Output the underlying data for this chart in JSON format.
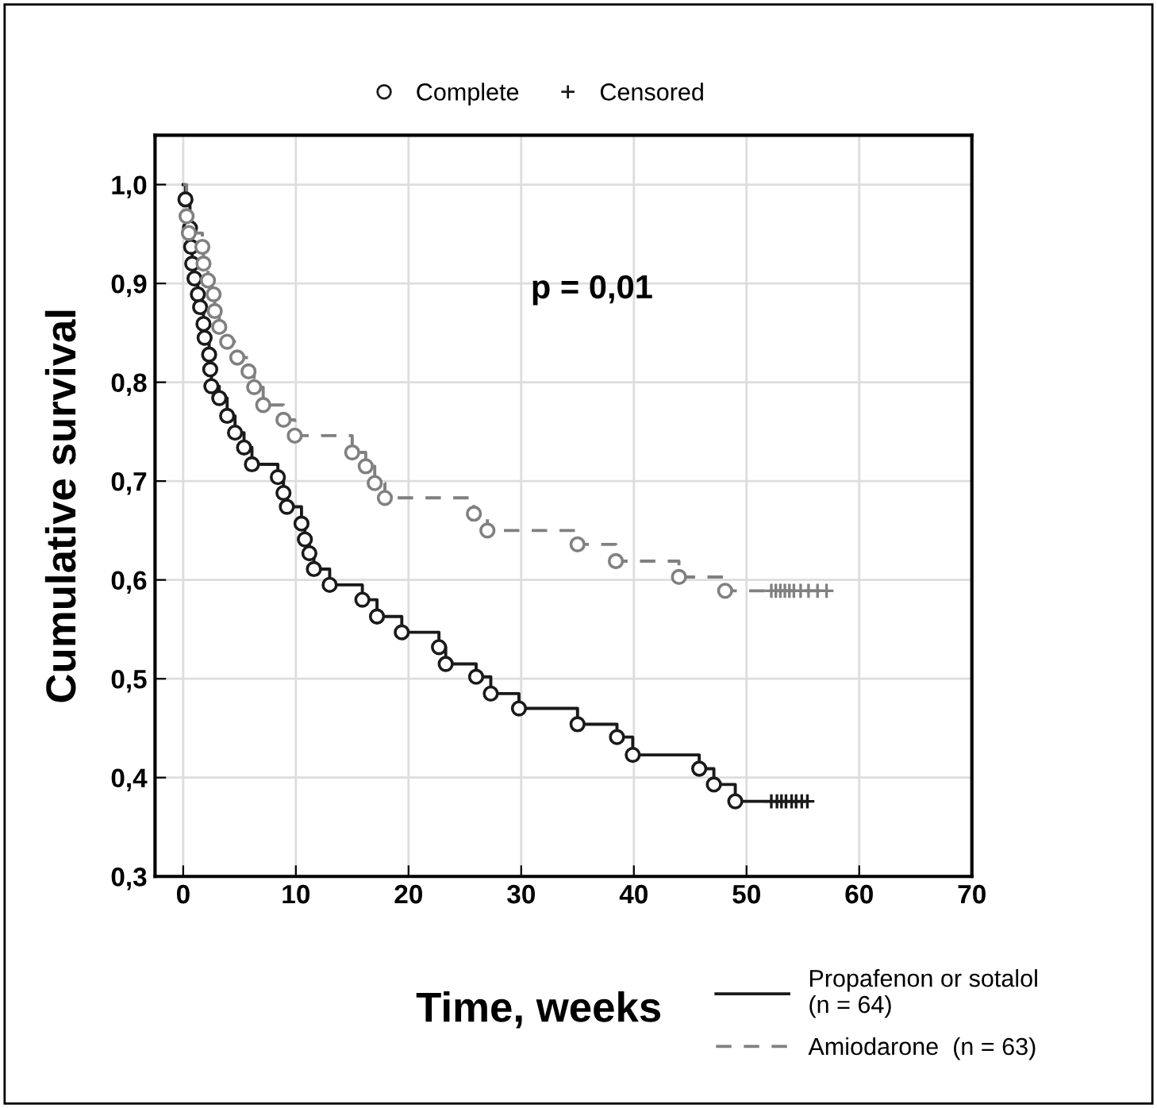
{
  "chart_data": {
    "type": "step",
    "xlabel": "Time, weeks",
    "ylabel": "Cumulative survival",
    "annotations": [
      "p = 0,01"
    ],
    "xlim": [
      -2.5,
      70
    ],
    "xticks": [
      0,
      10,
      20,
      30,
      40,
      50,
      60,
      70
    ],
    "ylim": [
      0.3,
      1.05
    ],
    "yticks": [
      {
        "value": 0.3,
        "label": "0,3"
      },
      {
        "value": 0.4,
        "label": "0,4"
      },
      {
        "value": 0.5,
        "label": "0,5"
      },
      {
        "value": 0.6,
        "label": "0,6"
      },
      {
        "value": 0.7,
        "label": "0,7"
      },
      {
        "value": 0.8,
        "label": "0,8"
      },
      {
        "value": 0.9,
        "label": "0,9"
      },
      {
        "value": 1.0,
        "label": "1,0"
      }
    ],
    "grid": true,
    "legend": "bottom right",
    "series": [
      {
        "name": "Propafenon or sotalol\n(n = 64)",
        "color": "#1a1a1a",
        "line_style": "solid",
        "x": [
          0,
          0.2,
          0.6,
          0.7,
          0.8,
          1.0,
          1.3,
          1.5,
          1.8,
          1.9,
          2.3,
          2.4,
          2.5,
          3.2,
          3.9,
          4.6,
          5.4,
          6.1,
          8.4,
          8.9,
          9.2,
          10.5,
          10.8,
          11.2,
          11.6,
          13.0,
          15.9,
          17.2,
          19.4,
          22.7,
          23.3,
          26.0,
          27.3,
          29.8,
          35.0,
          38.5,
          39.9,
          45.8,
          47.1,
          49.0,
          55.4
        ],
        "values": [
          1.0,
          0.985,
          0.956,
          0.937,
          0.92,
          0.905,
          0.889,
          0.876,
          0.859,
          0.845,
          0.828,
          0.813,
          0.796,
          0.784,
          0.766,
          0.749,
          0.734,
          0.717,
          0.704,
          0.688,
          0.674,
          0.657,
          0.641,
          0.627,
          0.611,
          0.595,
          0.58,
          0.563,
          0.547,
          0.532,
          0.515,
          0.502,
          0.485,
          0.47,
          0.454,
          0.441,
          0.423,
          0.409,
          0.393,
          0.376,
          0.376
        ]
      },
      {
        "name": "Amiodarone  (n = 63)",
        "color": "#808080",
        "line_style": "dashed",
        "x": [
          0,
          0.3,
          0.5,
          1.7,
          1.8,
          2.2,
          2.7,
          2.8,
          3.2,
          3.9,
          4.8,
          5.8,
          6.3,
          7.1,
          8.9,
          9.9,
          15.0,
          16.2,
          17.0,
          17.9,
          25.8,
          27.0,
          35.0,
          38.4,
          44.0,
          48.1,
          57.1
        ],
        "values": [
          1.0,
          0.968,
          0.951,
          0.937,
          0.92,
          0.903,
          0.889,
          0.872,
          0.856,
          0.841,
          0.825,
          0.811,
          0.795,
          0.777,
          0.762,
          0.746,
          0.729,
          0.715,
          0.698,
          0.683,
          0.667,
          0.65,
          0.636,
          0.619,
          0.603,
          0.589,
          0.589
        ]
      },
      {
        "type": "scatter",
        "name": "Complete",
        "marker": "circle",
        "color": "#1a1a1a",
        "x": [
          0.2,
          0.6,
          0.7,
          0.8,
          1.0,
          1.3,
          1.5,
          1.8,
          1.9,
          2.3,
          2.4,
          2.5,
          3.2,
          3.9,
          4.6,
          5.4,
          6.1,
          8.4,
          8.9,
          9.2,
          10.5,
          10.8,
          11.2,
          11.6,
          13.0,
          15.9,
          17.2,
          19.4,
          22.7,
          23.3,
          26.0,
          27.3,
          29.8,
          35.0,
          38.5,
          39.9,
          45.8,
          47.1,
          49.0,
          0.3,
          0.5,
          1.7,
          1.8,
          2.2,
          2.7,
          2.8,
          3.2,
          3.9,
          4.8,
          5.8,
          6.3,
          7.1,
          8.9,
          9.9,
          15.0,
          16.2,
          17.0,
          17.9,
          25.8,
          27.0,
          35.0,
          38.4,
          44.0,
          48.1
        ],
        "values": [
          0.985,
          0.956,
          0.937,
          0.92,
          0.905,
          0.889,
          0.876,
          0.859,
          0.845,
          0.828,
          0.813,
          0.796,
          0.784,
          0.766,
          0.749,
          0.734,
          0.717,
          0.704,
          0.688,
          0.674,
          0.657,
          0.641,
          0.627,
          0.611,
          0.595,
          0.58,
          0.563,
          0.547,
          0.532,
          0.515,
          0.502,
          0.485,
          0.47,
          0.454,
          0.441,
          0.423,
          0.409,
          0.393,
          0.376,
          0.968,
          0.951,
          0.937,
          0.92,
          0.903,
          0.889,
          0.872,
          0.856,
          0.841,
          0.825,
          0.811,
          0.795,
          0.777,
          0.762,
          0.746,
          0.729,
          0.715,
          0.698,
          0.683,
          0.667,
          0.65,
          0.636,
          0.619,
          0.603,
          0.589
        ],
        "colors": [
          "#1a1a1a",
          "#1a1a1a",
          "#1a1a1a",
          "#1a1a1a",
          "#1a1a1a",
          "#1a1a1a",
          "#1a1a1a",
          "#1a1a1a",
          "#1a1a1a",
          "#1a1a1a",
          "#1a1a1a",
          "#1a1a1a",
          "#1a1a1a",
          "#1a1a1a",
          "#1a1a1a",
          "#1a1a1a",
          "#1a1a1a",
          "#1a1a1a",
          "#1a1a1a",
          "#1a1a1a",
          "#1a1a1a",
          "#1a1a1a",
          "#1a1a1a",
          "#1a1a1a",
          "#1a1a1a",
          "#1a1a1a",
          "#1a1a1a",
          "#1a1a1a",
          "#1a1a1a",
          "#1a1a1a",
          "#1a1a1a",
          "#1a1a1a",
          "#1a1a1a",
          "#1a1a1a",
          "#1a1a1a",
          "#1a1a1a",
          "#1a1a1a",
          "#1a1a1a",
          "#1a1a1a",
          "#808080",
          "#808080",
          "#808080",
          "#808080",
          "#808080",
          "#808080",
          "#808080",
          "#808080",
          "#808080",
          "#808080",
          "#808080",
          "#808080",
          "#808080",
          "#808080",
          "#808080",
          "#808080",
          "#808080",
          "#808080",
          "#808080",
          "#808080",
          "#808080",
          "#808080",
          "#808080",
          "#808080",
          "#808080"
        ]
      },
      {
        "type": "scatter",
        "name": "Censored",
        "marker": "cross",
        "color": "#1a1a1a",
        "x": [
          52.2,
          52.7,
          53.1,
          53.5,
          54.0,
          54.4,
          54.9,
          55.4,
          52.2,
          52.6,
          53.0,
          53.4,
          53.8,
          54.2,
          54.8,
          55.5,
          56.3,
          57.1
        ],
        "values": [
          0.376,
          0.376,
          0.376,
          0.376,
          0.376,
          0.376,
          0.376,
          0.376,
          0.589,
          0.589,
          0.589,
          0.589,
          0.589,
          0.589,
          0.589,
          0.589,
          0.589,
          0.589
        ],
        "colors": [
          "#1a1a1a",
          "#1a1a1a",
          "#1a1a1a",
          "#1a1a1a",
          "#1a1a1a",
          "#1a1a1a",
          "#1a1a1a",
          "#1a1a1a",
          "#808080",
          "#808080",
          "#808080",
          "#808080",
          "#808080",
          "#808080",
          "#808080",
          "#808080",
          "#808080",
          "#808080"
        ]
      }
    ]
  }
}
